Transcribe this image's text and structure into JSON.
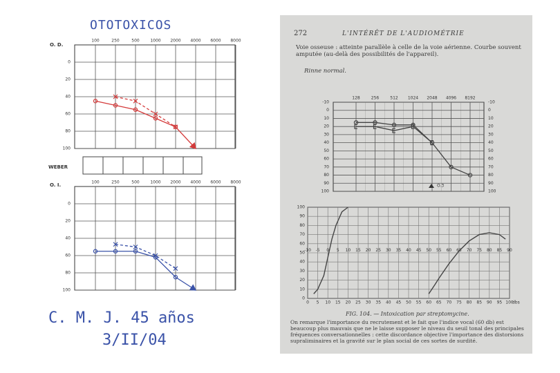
{
  "left": {
    "title": "OTOTOXICOS",
    "weber": "WEBER",
    "od": {
      "label": "O. D.",
      "xlabels": [
        "100",
        "250",
        "500",
        "1000",
        "2000",
        "4000",
        "6000",
        "8000"
      ],
      "ylim": [
        -20,
        100
      ],
      "yticks": [
        0,
        20,
        40,
        60,
        80,
        100
      ],
      "series": [
        {
          "color": "#d43a3a",
          "marker": "o",
          "dash": false,
          "arrow": true,
          "values": [
            45,
            50,
            55,
            65,
            75,
            100,
            null,
            null
          ]
        },
        {
          "color": "#d43a3a",
          "marker": "x",
          "dash": true,
          "arrow": false,
          "values": [
            null,
            40,
            45,
            60,
            75,
            null,
            null,
            null
          ]
        }
      ]
    },
    "oi": {
      "label": "O. I.",
      "xlabels": [
        "100",
        "250",
        "500",
        "1000",
        "2000",
        "4000",
        "6000",
        "8000"
      ],
      "ylim": [
        -20,
        100
      ],
      "yticks": [
        0,
        20,
        40,
        60,
        80,
        100
      ],
      "series": [
        {
          "color": "#3a52a8",
          "marker": "o",
          "dash": false,
          "arrow": true,
          "values": [
            55,
            55,
            55,
            62,
            85,
            100,
            null,
            null
          ]
        },
        {
          "color": "#3a52a8",
          "marker": "x",
          "dash": true,
          "arrow": false,
          "values": [
            null,
            47,
            50,
            60,
            75,
            null,
            null,
            null
          ]
        }
      ]
    },
    "patient": "C. M. J.  45 años",
    "date": "3/II/04"
  },
  "right": {
    "page": "272",
    "header": "L'INTÉRÊT DE L'AUDIOMÉTRIE",
    "text1": "Voie osseuse : atteinte parallèle à celle de la voie aérienne. Courbe souvent amputée (au-delà des possibilités de l'appareil).",
    "text2": "Rinne normal.",
    "audiogram": {
      "xlabels": [
        "128",
        "256",
        "512",
        "1024",
        "2048",
        "4096",
        "8192"
      ],
      "ylim": [
        -10,
        100
      ],
      "yticks": [
        -10,
        0,
        10,
        20,
        30,
        40,
        50,
        60,
        70,
        80,
        90,
        100
      ],
      "legend": "O.3",
      "series": [
        {
          "color": "#444",
          "marker": "o",
          "dash": false,
          "arrow": false,
          "values": [
            15,
            15,
            18,
            18,
            40,
            70,
            80
          ]
        },
        {
          "color": "#444",
          "marker": "[",
          "dash": false,
          "arrow": false,
          "values": [
            20,
            20,
            25,
            20,
            40,
            null,
            null
          ]
        }
      ]
    },
    "vocal": {
      "xlim": [
        0,
        100
      ],
      "xticks": [
        0,
        5,
        10,
        15,
        20,
        25,
        30,
        35,
        40,
        45,
        50,
        55,
        60,
        65,
        70,
        75,
        80,
        85,
        90,
        95,
        100
      ],
      "xunit": "dbs",
      "ylim": [
        0,
        100
      ],
      "yticks": [
        0,
        10,
        20,
        30,
        40,
        50,
        60,
        70,
        80,
        90,
        100
      ],
      "inner_ticks": [
        -10,
        -5,
        0,
        5,
        10,
        15,
        20,
        25,
        30,
        35,
        40,
        45,
        50,
        55,
        60,
        65,
        70,
        75,
        80,
        85,
        90
      ],
      "series": [
        {
          "color": "#444",
          "x": [
            3,
            5,
            8,
            10,
            12,
            14,
            17,
            20
          ],
          "y": [
            5,
            10,
            25,
            45,
            65,
            80,
            95,
            100
          ]
        },
        {
          "color": "#444",
          "x": [
            60,
            63,
            65,
            70,
            75,
            80,
            85,
            90,
            95,
            98
          ],
          "y": [
            5,
            15,
            22,
            38,
            52,
            63,
            70,
            72,
            70,
            65
          ]
        }
      ]
    },
    "caption": "FIG. 104. — Intoxication par streptomycine.",
    "text3": "On remarque l'importance du recrutement et le fait que l'indice vocal (60 db) est beaucoup plus mauvais que ne le laisse supposer le niveau du seuil tonal des principales fréquences conversationnelles : cette discordance objective l'importance des distorsions supraliminaires et la gravité sur le plan social de ces sortes de surdité."
  }
}
